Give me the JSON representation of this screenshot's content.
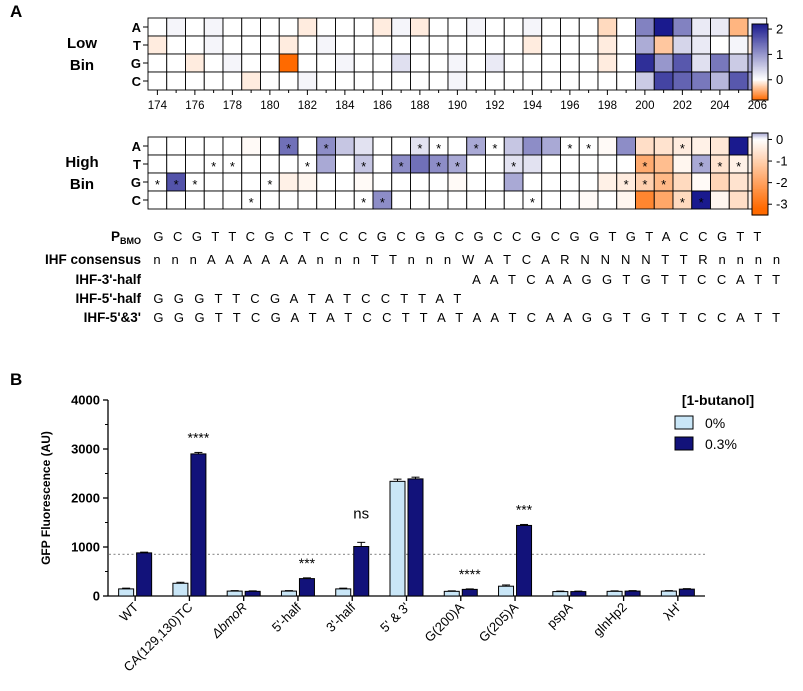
{
  "panel_a_label": "A",
  "panel_b_label": "B",
  "colors": {
    "blue_max": "#1a1a8e",
    "white": "#ffffff",
    "orange_max": "#ff6a00",
    "bar_light": "#c9e6f7",
    "bar_dark": "#12127a",
    "reference_line": "#9a9a9a"
  },
  "chart_data": [
    {
      "type": "heatmap",
      "title": "Low Bin",
      "row_label_lines": [
        "Low",
        "Bin"
      ],
      "rows": [
        "A",
        "T",
        "G",
        "C"
      ],
      "positions_start": 174,
      "positions_end": 206,
      "x_tick_labels": [
        "174",
        "176",
        "178",
        "180",
        "182",
        "184",
        "186",
        "188",
        "190",
        "192",
        "194",
        "196",
        "198",
        "200",
        "202",
        "204",
        "206"
      ],
      "colorbar": {
        "range": [
          -0.8,
          2.2
        ],
        "ticks": [
          "2",
          "1",
          "0"
        ],
        "tick_values": [
          2,
          1,
          0
        ]
      },
      "values": [
        [
          0,
          0.1,
          0,
          0.1,
          0,
          0,
          0,
          0,
          -0.1,
          0,
          0,
          0,
          -0.1,
          0.1,
          -0.1,
          0,
          0,
          0.1,
          0,
          0,
          0.1,
          0,
          0,
          0,
          -0.2,
          0,
          1.2,
          2.2,
          1.2,
          0.2,
          0.2,
          -0.4,
          0.1
        ],
        [
          -0.1,
          0,
          0,
          0.1,
          0,
          0,
          0,
          -0.1,
          0,
          0.1,
          0,
          0,
          0,
          0,
          0,
          0,
          0,
          0,
          0,
          0,
          -0.1,
          0,
          0,
          0,
          -0.1,
          0,
          0.8,
          -0.3,
          0.4,
          0.2,
          0,
          0.1,
          -0.1
        ],
        [
          0,
          0,
          -0.1,
          0,
          0.1,
          0,
          0,
          -0.8,
          0,
          0,
          0.1,
          0,
          0,
          0.3,
          0,
          0,
          0.1,
          0,
          0.2,
          0,
          0,
          0,
          0,
          0,
          -0.1,
          0,
          2.0,
          1.0,
          1.6,
          0.3,
          1.3,
          0.5,
          0.8
        ],
        [
          0,
          0,
          0,
          0,
          0,
          -0.1,
          0,
          0,
          0.1,
          0,
          0,
          0,
          0,
          0,
          0,
          0,
          0.1,
          0,
          0,
          0,
          0,
          0,
          0,
          0,
          0,
          0,
          0.5,
          1.8,
          1.5,
          1.3,
          0.7,
          1.6,
          1.0
        ]
      ]
    },
    {
      "type": "heatmap",
      "title": "High Bin",
      "row_label_lines": [
        "High",
        "Bin"
      ],
      "rows": [
        "A",
        "T",
        "G",
        "C"
      ],
      "positions_start": 174,
      "positions_end": 206,
      "colorbar": {
        "range": [
          -3.5,
          0.3
        ],
        "ticks": [
          "0",
          "-1",
          "-2",
          "-3"
        ],
        "tick_values": [
          0,
          -1,
          -2,
          -3
        ]
      },
      "values": [
        [
          0,
          0,
          0,
          0,
          0,
          -0.1,
          0,
          0.5,
          0,
          0.4,
          0.2,
          0.1,
          0,
          0,
          0.1,
          0,
          0,
          0.3,
          0,
          0.2,
          0.4,
          0.3,
          0,
          0,
          -0.1,
          0.4,
          -0.7,
          -0.6,
          -0.4,
          -0.3,
          -0.5,
          1.2,
          -0.3
        ],
        [
          0,
          0,
          0,
          0,
          0,
          0,
          0,
          0,
          0,
          0.3,
          0,
          0.2,
          0,
          0.4,
          0.5,
          0.4,
          0.3,
          0,
          0,
          0.1,
          0.1,
          0,
          0,
          0,
          0,
          0,
          -1.8,
          -1.4,
          -0.2,
          0.3,
          -0.6,
          -0.3,
          -0.2
        ],
        [
          0,
          0.6,
          0,
          0,
          0,
          0,
          0,
          -0.3,
          -0.2,
          0,
          0,
          -0.1,
          0,
          0,
          0,
          0,
          -0.1,
          0,
          0,
          0.3,
          0,
          0,
          0,
          0,
          -0.3,
          -0.4,
          -1.0,
          -1.5,
          -0.8,
          -0.1,
          -0.9,
          -0.6,
          -0.5
        ],
        [
          0,
          0,
          0,
          0,
          0,
          0,
          0,
          0,
          0,
          0,
          0,
          0,
          0.4,
          0,
          0,
          0,
          0,
          0,
          0,
          0,
          0,
          0,
          0,
          -0.1,
          0,
          -0.2,
          -2.6,
          -1.9,
          -0.8,
          1.4,
          -0.2,
          -0.7,
          -0.3
        ]
      ],
      "stars": [
        [
          7,
          9,
          14,
          15,
          17,
          18,
          22,
          23,
          28
        ],
        [
          3,
          4,
          8,
          11,
          13,
          15,
          16,
          19,
          26,
          29,
          30,
          31,
          32
        ],
        [
          0,
          1,
          2,
          6,
          25,
          26,
          27
        ],
        [
          5,
          11,
          12,
          20,
          28,
          29
        ]
      ],
      "star_label": "*"
    },
    {
      "type": "table",
      "rows": [
        {
          "label": "P",
          "label_sub": "BMO",
          "seq": "GCGTTCGCTCCCGCGGCGCCGCGGTGTACCGTT"
        },
        {
          "label": "IHF consensus",
          "seq": "nnnAAAAAAnnnTTnnnWATCARNNNNTTRnnnn"
        },
        {
          "label": "IHF-3'-half",
          "seq": "",
          "offset": 17,
          "seq2": "AATCAAGGTGTTCCATT"
        },
        {
          "label": "IHF-5'-half",
          "seq": "GGGTTCGATATCCTTAT"
        },
        {
          "label": "IHF-5'&3'",
          "seq": "GGGTTCGATATCCTTATAATCAAGGTGTTCCATT"
        }
      ]
    },
    {
      "type": "bar",
      "ylabel": "GFP Fluorescence (AU)",
      "ylim": [
        0,
        4000
      ],
      "yticks": [
        "0",
        "1000",
        "2000",
        "3000",
        "4000"
      ],
      "ytick_values": [
        0,
        1000,
        2000,
        3000,
        4000
      ],
      "reference_line": 850,
      "legend_title": "[1-butanol]",
      "categories": [
        "WT",
        "CA(129,130)TC",
        "ΔbmoR",
        "5'-half",
        "3'-half",
        "5' & 3'",
        "G(200)A",
        "G(205)A",
        "pspA",
        "glnHp2",
        "λH'"
      ],
      "series": [
        {
          "name": "0%",
          "values": [
            145,
            260,
            100,
            100,
            145,
            2340,
            95,
            200,
            90,
            95,
            100
          ],
          "errors": [
            15,
            20,
            10,
            10,
            15,
            45,
            10,
            25,
            10,
            10,
            10
          ]
        },
        {
          "name": "0.3%",
          "values": [
            880,
            2900,
            95,
            355,
            1010,
            2390,
            135,
            1440,
            90,
            100,
            140
          ],
          "errors": [
            15,
            30,
            10,
            15,
            85,
            35,
            10,
            20,
            10,
            10,
            10
          ]
        }
      ],
      "significance": [
        "",
        "****",
        "",
        "***",
        "ns",
        "",
        "****",
        "***",
        "",
        "",
        ""
      ]
    }
  ]
}
